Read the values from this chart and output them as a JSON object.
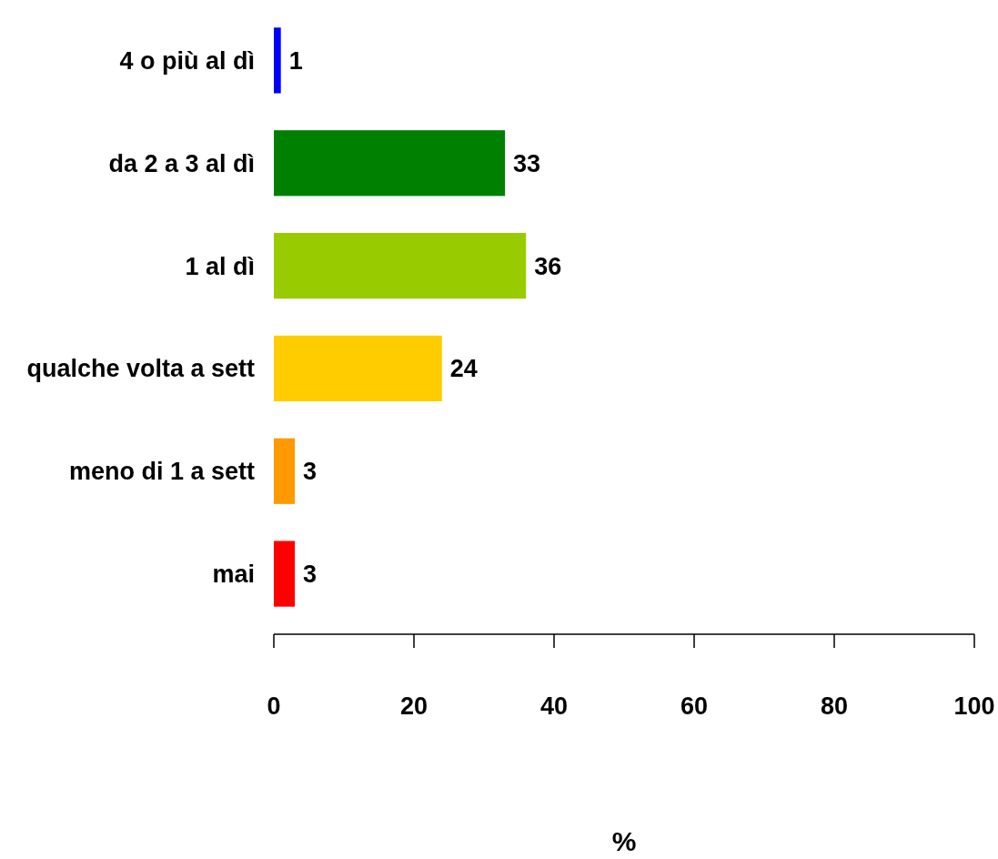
{
  "chart_data": {
    "type": "bar",
    "orientation": "horizontal",
    "xlabel": "%",
    "categories": [
      "4 o più al dì",
      "da 2 a 3 al dì",
      "1 al dì",
      "qualche volta a sett",
      "meno di 1 a sett",
      "mai"
    ],
    "values": [
      1,
      33,
      36,
      24,
      3,
      3
    ],
    "colors": [
      "#0000ff",
      "#008000",
      "#99cc00",
      "#ffcc00",
      "#ff9900",
      "#ff0000"
    ],
    "xlim": [
      0,
      100
    ],
    "xticks": [
      0,
      20,
      40,
      60,
      80,
      100
    ],
    "data_labels": true,
    "grid": false
  }
}
